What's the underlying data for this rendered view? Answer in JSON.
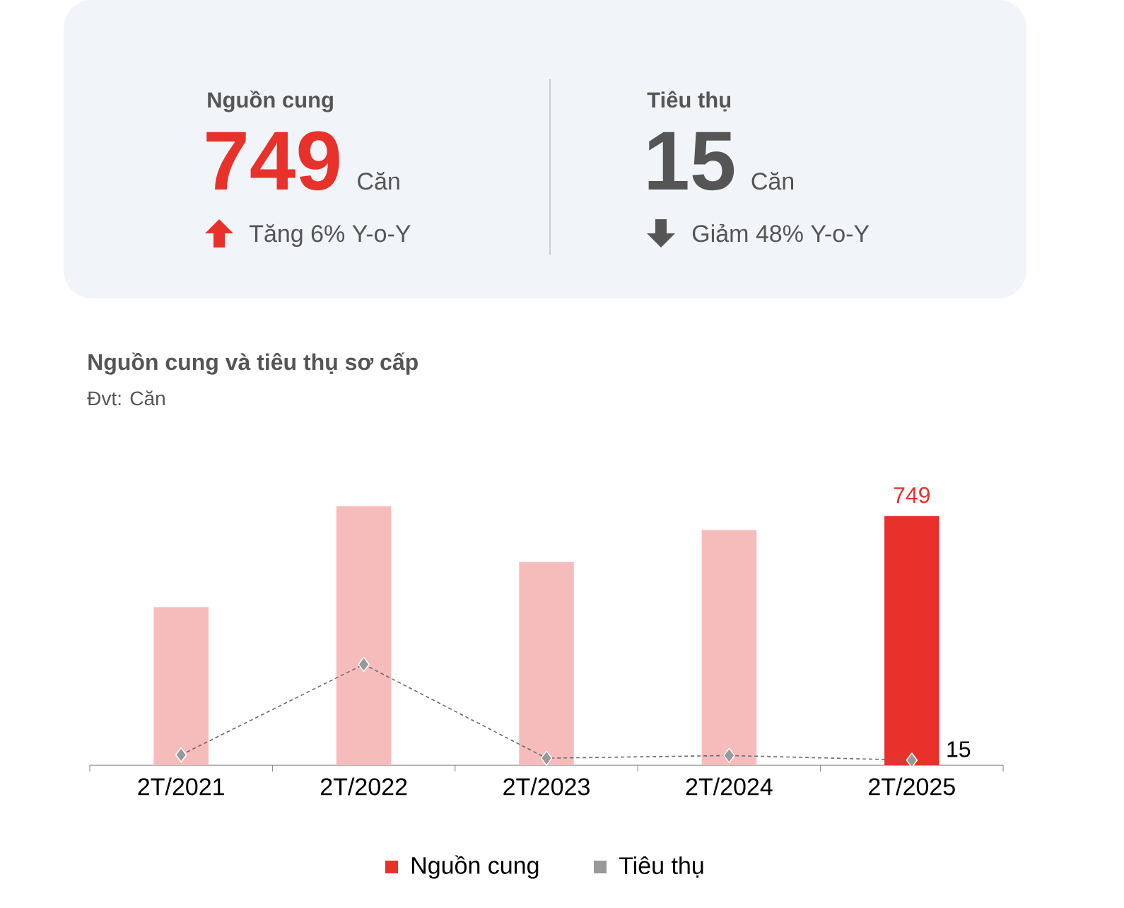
{
  "chart_data": [
    {
      "type": "other",
      "annotations": [
        "Nguồn cung",
        "749",
        "Căn",
        "Tăng 6% Y-o-Y",
        "Tiêu thụ",
        "15",
        "Căn",
        "Giảm 48% Y-o-Y"
      ]
    },
    {
      "type": "bar",
      "title": "Nguồn cung và tiêu thụ sơ cấp",
      "subtitle": "Đvt: Căn",
      "categories": [
        "2T/2021",
        "2T/2022",
        "2T/2023",
        "2T/2024",
        "2T/2025"
      ],
      "series": [
        {
          "name": "Nguồn cung",
          "type": "bar",
          "color": "#e8312a",
          "colors": [
            "#f6bcbc",
            "#f6bcbc",
            "#f6bcbc",
            "#f6bcbc",
            "#e8312a"
          ],
          "values": [
            475,
            778,
            610,
            707,
            749
          ],
          "value_labels": [
            null,
            null,
            null,
            null,
            "749"
          ]
        },
        {
          "name": "Tiêu thụ",
          "type": "line",
          "color": "#999999",
          "values": [
            31,
            303,
            21,
            29,
            15
          ],
          "value_labels": [
            null,
            null,
            null,
            null,
            "15"
          ]
        }
      ],
      "marker": "diamond",
      "line_style": "dashed",
      "legend": "bottom",
      "grid": false
    }
  ]
}
